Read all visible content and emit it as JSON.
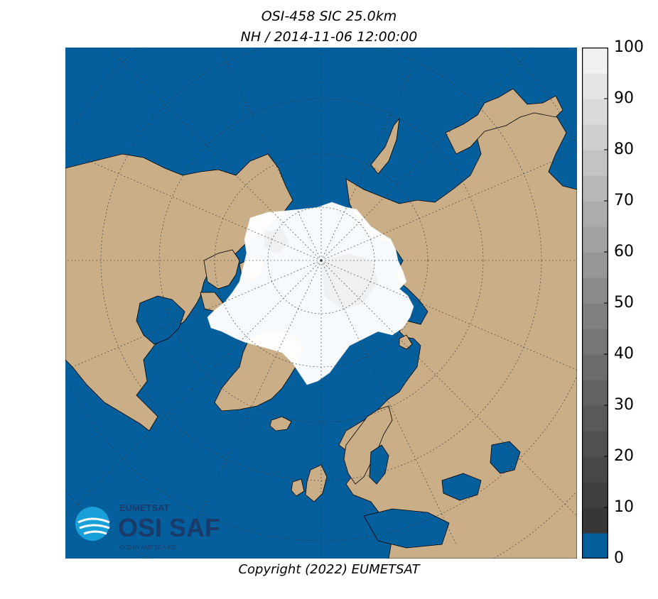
{
  "title_line1": "OSI-458 SIC 25.0km",
  "title_line2": "NH / 2014-11-06 12:00:00",
  "copyright": "Copyright (2022)  EUMETSAT",
  "logo": {
    "org": "EUMETSAT",
    "name": "OSI SAF",
    "tagline": "OCEAN AND SEA ICE",
    "icon": "osisaf-swirl-icon"
  },
  "colorbar": {
    "ticks": [
      "0",
      "10",
      "20",
      "30",
      "40",
      "50",
      "60",
      "70",
      "80",
      "90",
      "100"
    ],
    "min": 0,
    "max": 100,
    "step": 5,
    "colors": [
      "#055f9c",
      "#373737",
      "#3f3f3f",
      "#474747",
      "#505050",
      "#595959",
      "#626262",
      "#6c6c6c",
      "#767676",
      "#808080",
      "#8b8b8b",
      "#969696",
      "#a1a1a1",
      "#acacac",
      "#b8b8b8",
      "#c3c3c3",
      "#cfcfcf",
      "#dadada",
      "#e6e6e6",
      "#f1f1f1"
    ],
    "top_color": "#ffffff"
  },
  "map_colors": {
    "ocean": "#055f9c",
    "land": "#c9ae88",
    "ice": "#ffffff",
    "coast": "#000000",
    "grid": "#333333"
  }
}
